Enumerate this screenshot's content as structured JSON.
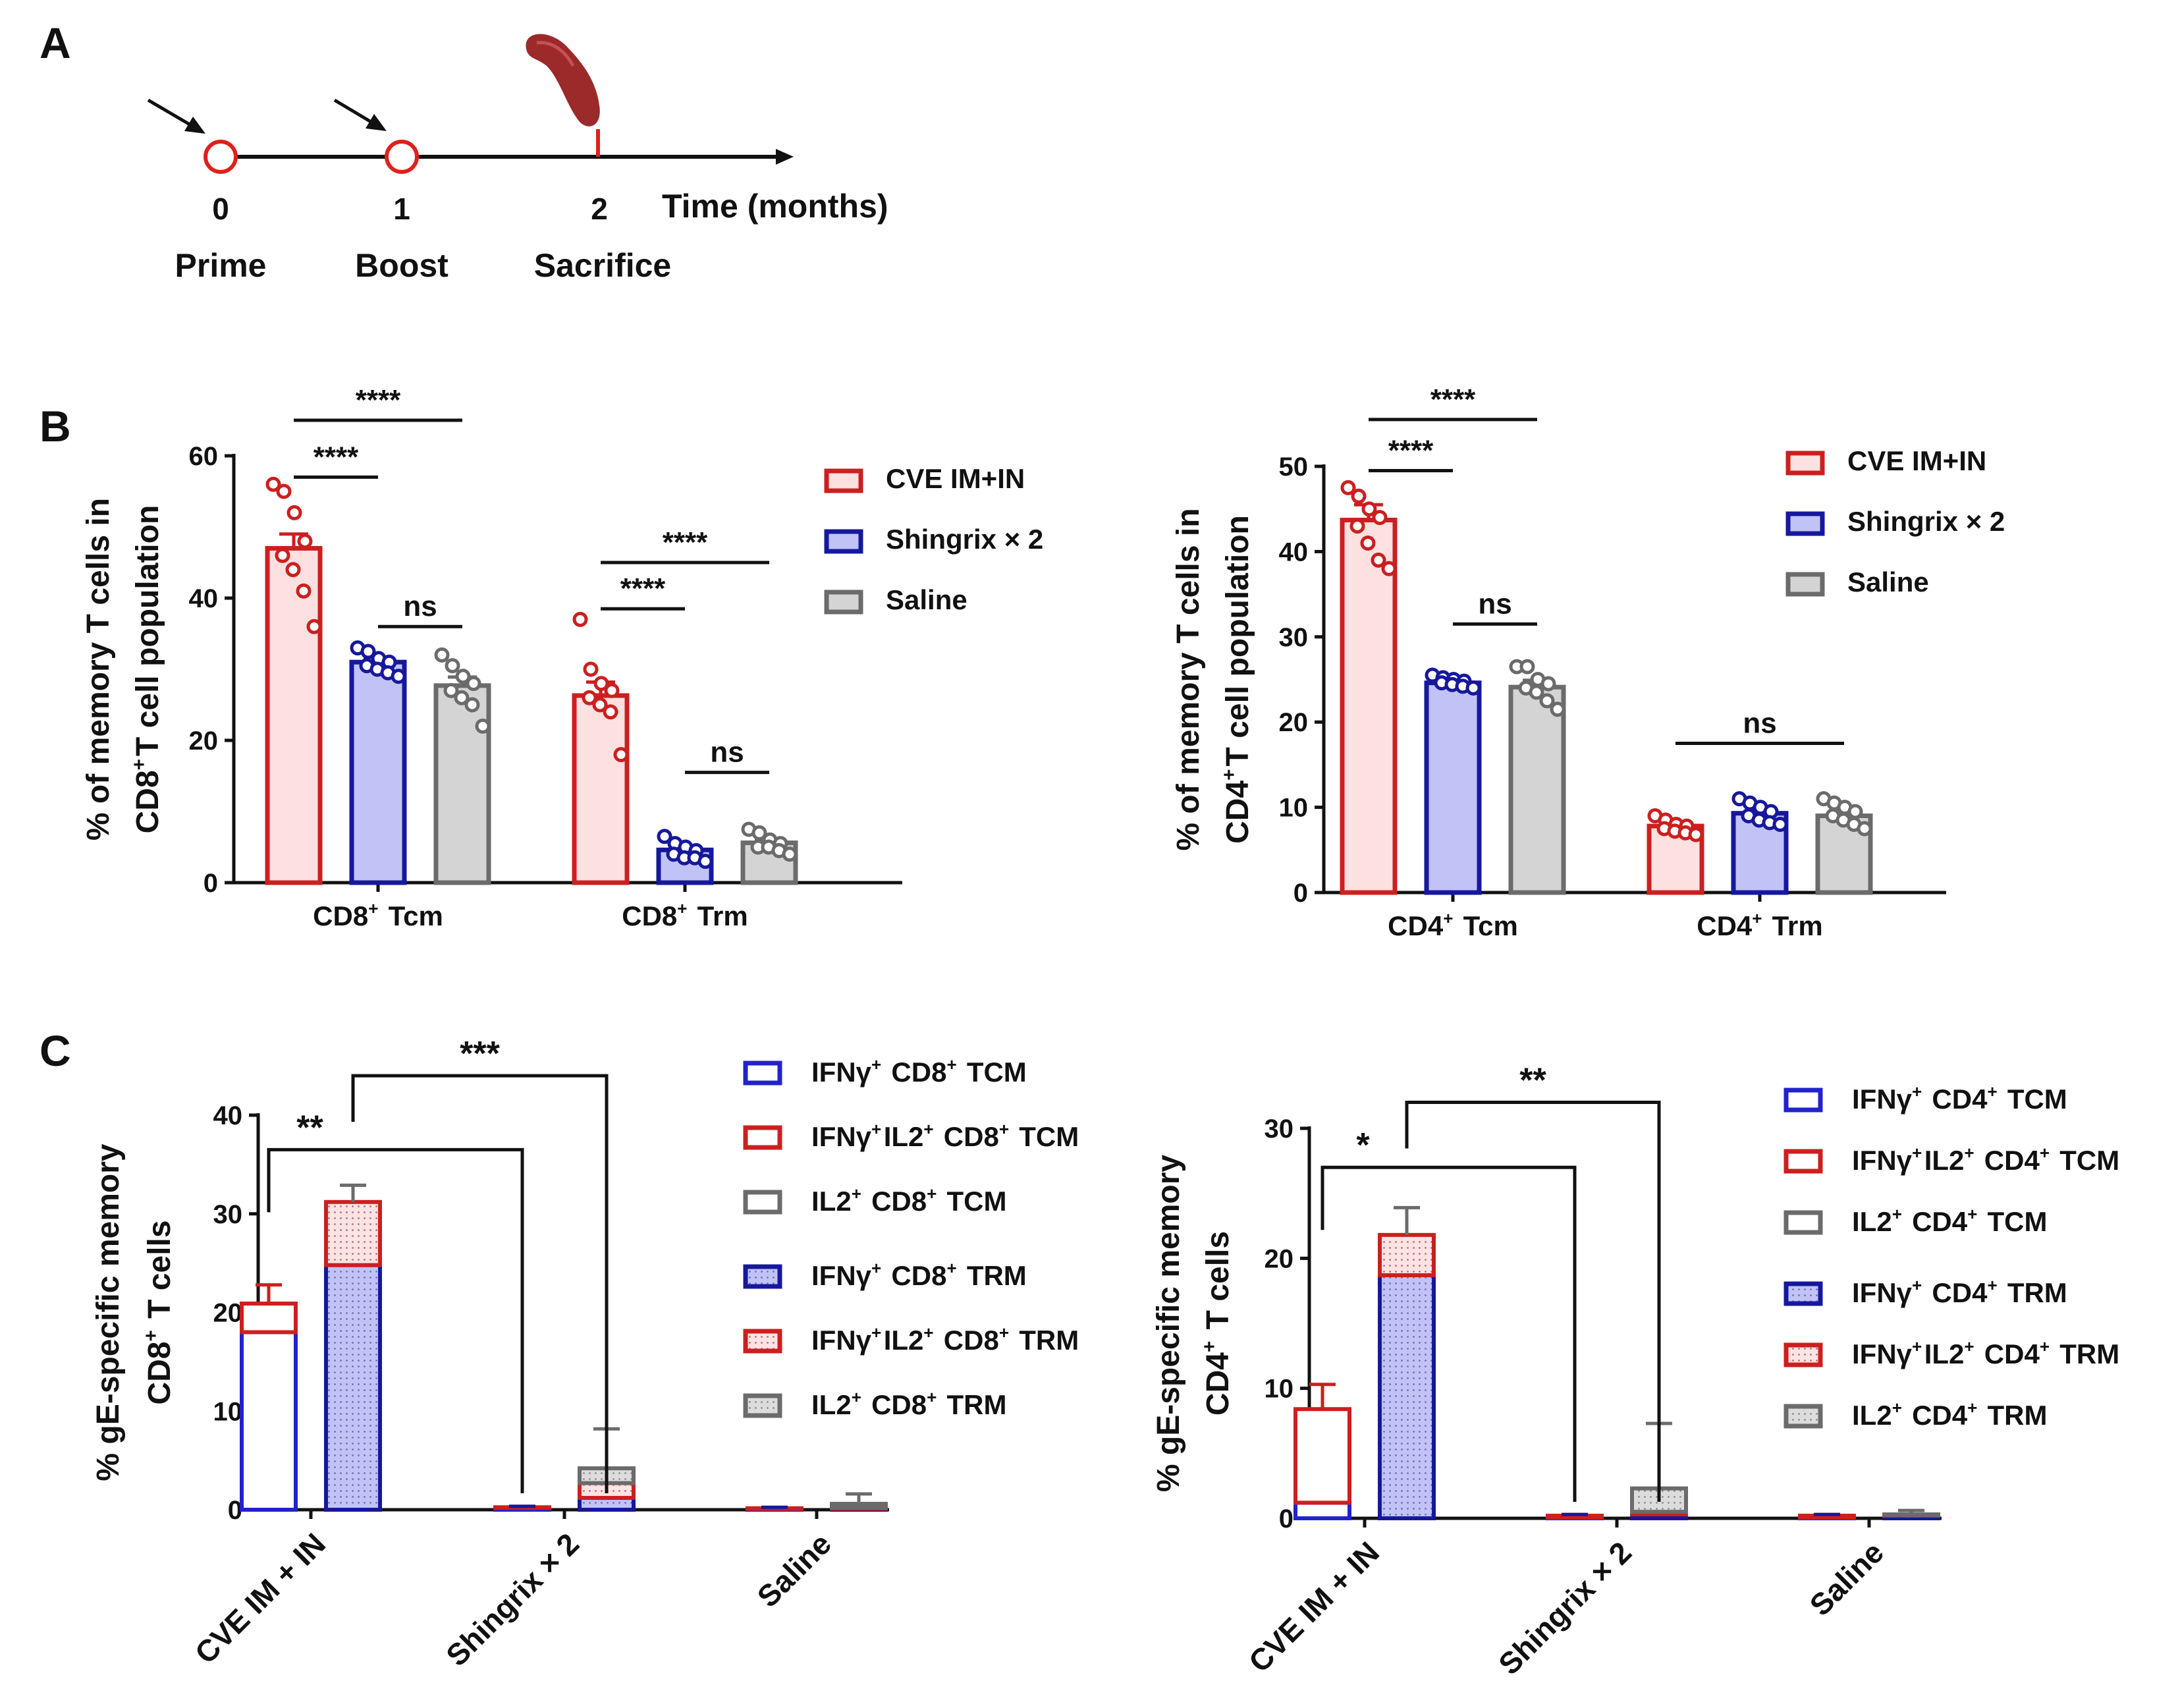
{
  "panel_labels": {
    "a": "A",
    "b": "B",
    "c": "C"
  },
  "colors": {
    "red": "#cc1f1f",
    "red_fill": "#fde0e0",
    "blue": "#16189c",
    "blue_fill": "#c1c3f6",
    "blue_outline": "#2222cc",
    "gray": "#6b6b6b",
    "gray_fill": "#d4d4d4"
  },
  "timeline": {
    "points": [
      {
        "tick": "0",
        "label": "Prime"
      },
      {
        "tick": "1",
        "label": "Boost"
      },
      {
        "tick": "2",
        "label": "Sacrifice"
      }
    ],
    "axis_label": "Time (months)",
    "icons": [
      "arrow-icon",
      "arrow-icon",
      "spleen-icon"
    ]
  },
  "chart_data": [
    {
      "id": "b_cd8",
      "type": "bar",
      "ylabel_lines": [
        "% of memory T cells in",
        "CD8+T cell population"
      ],
      "ylim": [
        0,
        60
      ],
      "yticks": [
        "0",
        "20",
        "40",
        "60"
      ],
      "categories": [
        "CD8+ Tcm",
        "CD8+ Trm"
      ],
      "series": [
        {
          "name": "CVE IM+IN",
          "color": "red",
          "values": [
            47,
            26.3
          ],
          "errors": [
            2,
            1.9
          ],
          "points": [
            [
              56,
              55,
              52,
              48,
              46,
              44,
              41,
              36
            ],
            [
              37,
              30,
              28,
              27,
              26,
              25,
              24,
              18
            ]
          ]
        },
        {
          "name": "Shingrix × 2",
          "color": "blue",
          "values": [
            31,
            4.6
          ],
          "errors": [
            0.7,
            0.6
          ],
          "points": [
            [
              33,
              32.5,
              31.5,
              31,
              30.5,
              30,
              29.5,
              29
            ],
            [
              6.5,
              5.5,
              5,
              4.5,
              4,
              3.5,
              3.5,
              3
            ]
          ]
        },
        {
          "name": "Saline",
          "color": "gray",
          "values": [
            27.7,
            5.6
          ],
          "errors": [
            1.2,
            0.5
          ],
          "points": [
            [
              32,
              30.5,
              29,
              28,
              27,
              26,
              25,
              22
            ],
            [
              7.5,
              7,
              6,
              5.5,
              5,
              5,
              4.5,
              4
            ]
          ]
        }
      ],
      "significance": [
        {
          "label": "****",
          "from": [
            0,
            0
          ],
          "to": [
            0,
            1
          ],
          "y": 57
        },
        {
          "label": "****",
          "from": [
            0,
            0
          ],
          "to": [
            0,
            2
          ],
          "y": 65
        },
        {
          "label": "ns",
          "from": [
            0,
            1
          ],
          "to": [
            0,
            2
          ],
          "y": 36
        },
        {
          "label": "****",
          "from": [
            1,
            0
          ],
          "to": [
            1,
            1
          ],
          "y": 38.5
        },
        {
          "label": "****",
          "from": [
            1,
            0
          ],
          "to": [
            1,
            2
          ],
          "y": 45
        },
        {
          "label": "ns",
          "from": [
            1,
            1
          ],
          "to": [
            1,
            2
          ],
          "y": 15.5
        }
      ]
    },
    {
      "id": "b_cd4",
      "type": "bar",
      "ylabel_lines": [
        "% of memory T cells in",
        "CD4+T cell population"
      ],
      "ylim": [
        0,
        50
      ],
      "yticks": [
        "0",
        "10",
        "20",
        "30",
        "40",
        "50"
      ],
      "categories": [
        "CD4+ Tcm",
        "CD4+ Trm"
      ],
      "series": [
        {
          "name": "CVE IM+IN",
          "color": "red",
          "values": [
            43.7,
            7.8
          ],
          "errors": [
            1.8,
            0.4
          ],
          "points": [
            [
              47.5,
              46.5,
              45,
              44,
              43,
              41,
              39,
              38
            ],
            [
              9,
              8.5,
              8,
              7.8,
              7.5,
              7.2,
              7,
              6.8
            ]
          ]
        },
        {
          "name": "Shingrix × 2",
          "color": "blue",
          "values": [
            24.6,
            9.3
          ],
          "errors": [
            0.3,
            0.5
          ],
          "points": [
            [
              25.5,
              25.2,
              25,
              24.8,
              24.6,
              24.4,
              24.2,
              24
            ],
            [
              11,
              10.5,
              10,
              9.5,
              9,
              8.5,
              8.2,
              8
            ]
          ]
        },
        {
          "name": "Saline",
          "color": "gray",
          "values": [
            24.1,
            9
          ],
          "errors": [
            0.8,
            0.5
          ],
          "points": [
            [
              26.5,
              26.5,
              25,
              24.5,
              24,
              23.5,
              22.5,
              21.5
            ],
            [
              11,
              10.5,
              10,
              9.5,
              9,
              8.5,
              8,
              7.5
            ]
          ]
        }
      ],
      "significance": [
        {
          "label": "****",
          "from": [
            0,
            0
          ],
          "to": [
            0,
            1
          ],
          "y": 49.5
        },
        {
          "label": "****",
          "from": [
            0,
            0
          ],
          "to": [
            0,
            2
          ],
          "y": 55.5
        },
        {
          "label": "ns",
          "from": [
            0,
            1
          ],
          "to": [
            0,
            2
          ],
          "y": 31.5
        },
        {
          "label": "ns",
          "from": [
            1,
            0
          ],
          "to": [
            1,
            2
          ],
          "y": 17.5
        }
      ]
    },
    {
      "id": "c_cd8",
      "type": "stacked-bar",
      "ylabel_lines": [
        "% gE-specific memory",
        "CD8+ T cells"
      ],
      "ylim": [
        0,
        40
      ],
      "yticks": [
        "0",
        "10",
        "20",
        "30",
        "40"
      ],
      "categories": [
        "CVE IM + IN",
        "Shingrix × 2",
        "Saline"
      ],
      "series": [
        {
          "name": "IFNγ+ CD8+ TCM",
          "kind": "tcm",
          "color": "blue",
          "values": [
            18,
            0.2,
            0.1
          ]
        },
        {
          "name": "IFNγ+IL2+ CD8+ TCM",
          "kind": "tcm",
          "color": "red",
          "values": [
            2.9,
            0.05,
            0.05
          ]
        },
        {
          "name": "IL2+ CD8+ TCM",
          "kind": "tcm",
          "color": "gray",
          "values": [
            0,
            0,
            0
          ]
        },
        {
          "name": "IFNγ+ CD8+ TRM",
          "kind": "trm",
          "color": "blue",
          "values": [
            24.8,
            1.2,
            0.1
          ]
        },
        {
          "name": "IFNγ+IL2+ CD8+ TRM",
          "kind": "trm",
          "color": "red",
          "values": [
            6.4,
            1.5,
            0.1
          ]
        },
        {
          "name": "IL2+ CD8+ TRM",
          "kind": "trm",
          "color": "gray",
          "values": [
            0,
            1.5,
            0.4
          ]
        }
      ],
      "errors": {
        "tcm": [
          1.9,
          0.1,
          0.1
        ],
        "trm": [
          1.7,
          4,
          1
        ]
      },
      "significance": [
        {
          "label": "**",
          "from": 0,
          "to": 1,
          "y": 36.5
        },
        {
          "label": "***",
          "from": 0.5,
          "to": 1.5,
          "y": 44
        }
      ]
    },
    {
      "id": "c_cd4",
      "type": "stacked-bar",
      "ylabel_lines": [
        "% gE-specific memory",
        "CD4+ T cells"
      ],
      "ylim": [
        0,
        30
      ],
      "yticks": [
        "0",
        "10",
        "20",
        "30"
      ],
      "categories": [
        "CVE IM + IN",
        "Shingrix × 2",
        "Saline"
      ],
      "series": [
        {
          "name": "IFNγ+ CD4+ TCM",
          "kind": "tcm",
          "color": "blue",
          "values": [
            1.2,
            0.05,
            0.05
          ]
        },
        {
          "name": "IFNγ+IL2+ CD4+ TCM",
          "kind": "tcm",
          "color": "red",
          "values": [
            7.2,
            0.15,
            0.15
          ]
        },
        {
          "name": "IL2+ CD4+ TCM",
          "kind": "tcm",
          "color": "gray",
          "values": [
            0,
            0,
            0
          ]
        },
        {
          "name": "IFNγ+ CD4+ TRM",
          "kind": "trm",
          "color": "blue",
          "values": [
            18.7,
            0.3,
            0.2
          ]
        },
        {
          "name": "IFNγ+IL2+ CD4+ TRM",
          "kind": "trm",
          "color": "red",
          "values": [
            3.1,
            0.2,
            0.05
          ]
        },
        {
          "name": "IL2+ CD4+ TRM",
          "kind": "trm",
          "color": "gray",
          "values": [
            0,
            1.8,
            0.05
          ]
        }
      ],
      "errors": {
        "tcm": [
          1.9,
          0.1,
          0.1
        ],
        "trm": [
          2.1,
          5,
          0.3
        ]
      },
      "significance": [
        {
          "label": "*",
          "from": 0,
          "to": 1,
          "y": 27
        },
        {
          "label": "**",
          "from": 0.5,
          "to": 1.5,
          "y": 32
        }
      ]
    }
  ]
}
